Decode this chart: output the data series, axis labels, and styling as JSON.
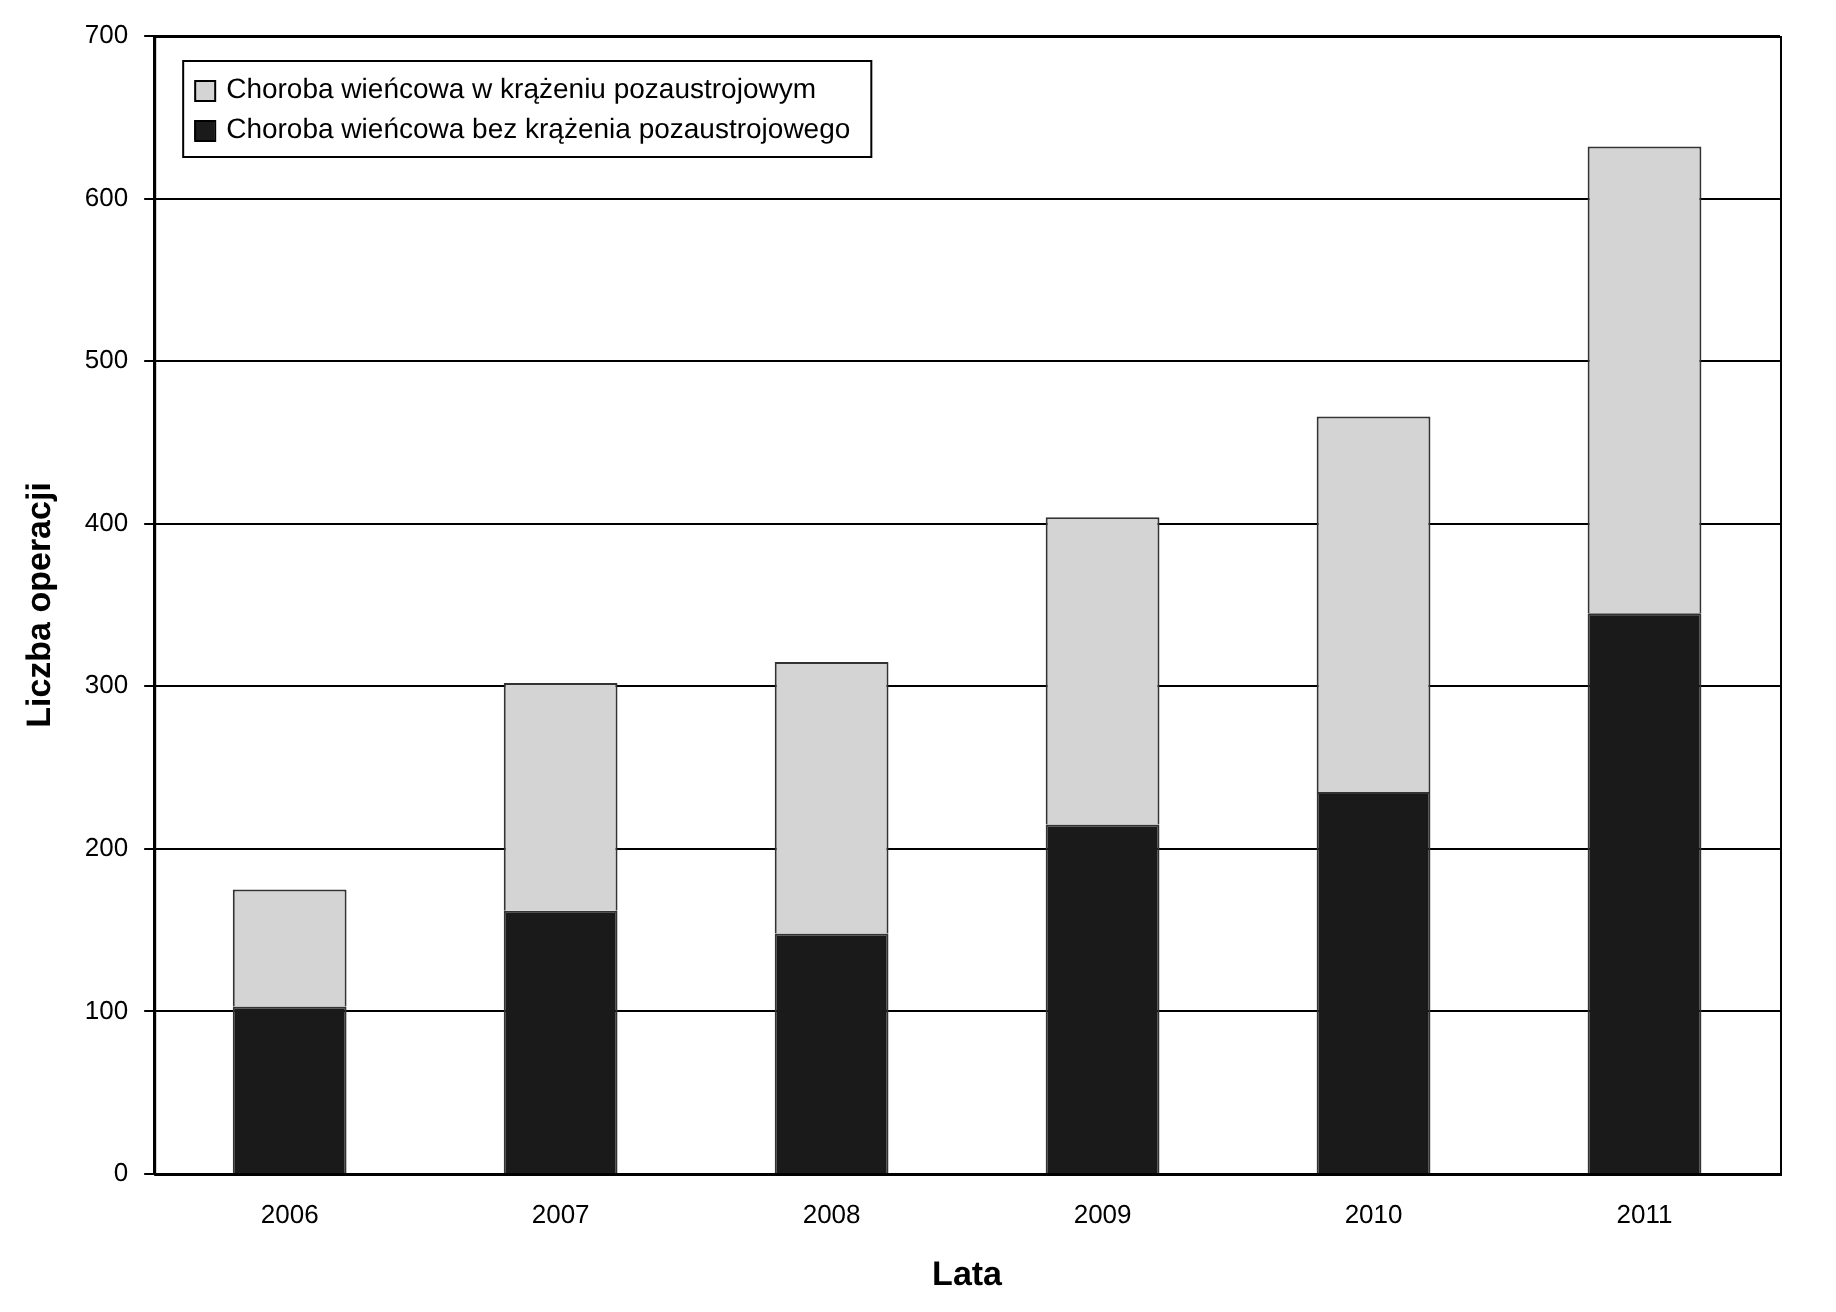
{
  "chart_data": {
    "type": "bar",
    "stacked": true,
    "xlabel": "Lata",
    "ylabel": "Liczba operacji",
    "categories": [
      "2006",
      "2007",
      "2008",
      "2009",
      "2010",
      "2011"
    ],
    "series": [
      {
        "name": "Choroba wieńcowa bez krążenia pozaustrojowego",
        "color": "#1a1a1a",
        "values": [
          103,
          162,
          148,
          215,
          235,
          345
        ]
      },
      {
        "name": "Choroba wieńcowa w krążeniu pozaustrojowym",
        "color": "#d4d4d4",
        "values": [
          72,
          140,
          167,
          189,
          231,
          287
        ]
      }
    ],
    "ylim": [
      0,
      700
    ],
    "yticks": [
      0,
      100,
      200,
      300,
      400,
      500,
      600,
      700
    ],
    "grid": "y",
    "legend": "top left"
  }
}
